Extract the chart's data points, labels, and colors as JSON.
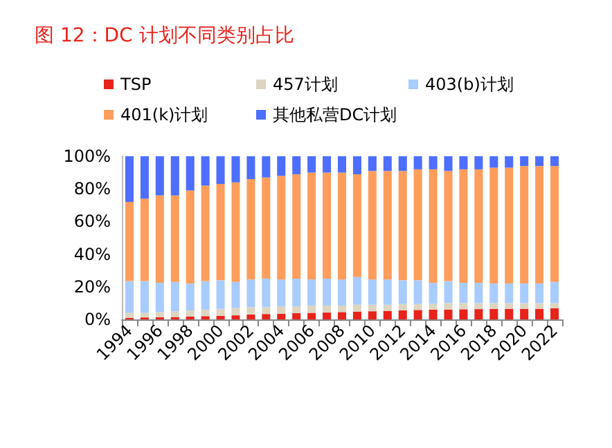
{
  "chart_data": {
    "type": "bar",
    "title": "图 12：DC 计划不同类别占比",
    "stacked": true,
    "legend": "top",
    "grid": false,
    "categories": [
      "1994",
      null,
      "1996",
      null,
      "1998",
      null,
      "2000",
      null,
      "2002",
      null,
      "2004",
      null,
      "2006",
      null,
      "2008",
      null,
      "2010",
      null,
      "2012",
      null,
      "2014",
      null,
      "2016",
      null,
      "2018",
      null,
      "2020",
      null,
      "2022"
    ],
    "ylim": [
      0,
      100
    ],
    "yticks": [
      {
        "value": 0,
        "label": "0%"
      },
      {
        "value": 20,
        "label": "20%"
      },
      {
        "value": 40,
        "label": "40%"
      },
      {
        "value": 60,
        "label": "60%"
      },
      {
        "value": 80,
        "label": "80%"
      },
      {
        "value": 100,
        "label": "100%"
      }
    ],
    "series": [
      {
        "name": "TSP",
        "color": "#e8231c",
        "values": [
          1.0,
          1.2,
          1.3,
          1.5,
          1.8,
          2.0,
          2.2,
          2.5,
          3.0,
          3.3,
          3.5,
          3.8,
          4.0,
          4.2,
          4.5,
          4.8,
          5.0,
          5.2,
          5.5,
          5.8,
          6.0,
          6.0,
          6.2,
          6.3,
          6.4,
          6.5,
          6.5,
          6.5,
          6.8
        ]
      },
      {
        "name": "457计划",
        "color": "#ddd5c0",
        "values": [
          3.0,
          2.8,
          3.2,
          3.5,
          3.7,
          4.0,
          4.3,
          4.5,
          4.5,
          4.2,
          4.5,
          4.2,
          4.5,
          4.3,
          4.0,
          4.2,
          4.0,
          3.8,
          4.0,
          3.7,
          3.5,
          4.0,
          3.8,
          3.7,
          3.6,
          3.5,
          3.5,
          3.5,
          3.2
        ]
      },
      {
        "name": "403(b)计划",
        "color": "#a9ccff",
        "values": [
          19.5,
          19.5,
          18,
          18,
          16.5,
          17.5,
          17.5,
          16,
          17,
          17.5,
          16.5,
          17,
          16,
          16.5,
          16,
          17,
          15.5,
          15.5,
          14.5,
          14.5,
          13,
          13.5,
          12.5,
          12.5,
          12,
          12,
          12,
          12,
          13
        ]
      },
      {
        "name": "401(k)计划",
        "color": "#ff9d5c",
        "values": [
          48.5,
          50.5,
          53.5,
          53,
          57,
          58.5,
          59,
          61,
          61.5,
          62,
          63.5,
          64,
          65.5,
          65,
          65.5,
          63,
          66.5,
          66.5,
          67,
          68,
          69.5,
          67.5,
          69.5,
          69.5,
          71,
          71,
          72,
          72,
          71
        ]
      },
      {
        "name": "其他私营DC计划",
        "color": "#4d6efe",
        "values": [
          28,
          26,
          24,
          24,
          21,
          18,
          17,
          16,
          14,
          13,
          12,
          11,
          10,
          10,
          10,
          11,
          9,
          9,
          9,
          8,
          8,
          9,
          8,
          8,
          7,
          7,
          6,
          6,
          6
        ]
      }
    ]
  }
}
